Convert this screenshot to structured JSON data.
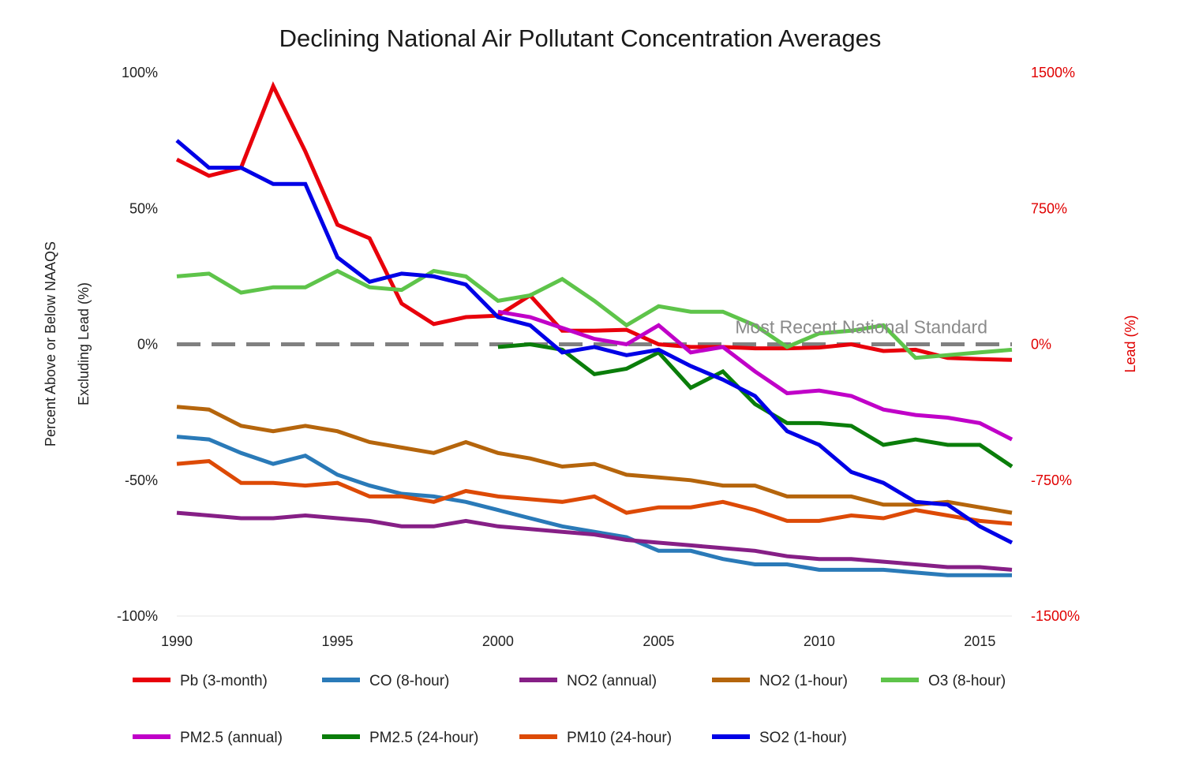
{
  "chart_data": {
    "type": "line",
    "title": "Declining National Air Pollutant Concentration Averages",
    "ylabel_line1": "Percent Above or Below NAAQS",
    "ylabel_line2": "Excluding Lead (%)",
    "y2label": "Lead (%)",
    "x_ticks": [
      1990,
      1995,
      2000,
      2005,
      2010,
      2015
    ],
    "xlim": [
      1990,
      2016
    ],
    "ylim": [
      -100,
      100
    ],
    "y_ticks": [
      100,
      50,
      0,
      -50,
      -100
    ],
    "y_tick_labels": [
      "100%",
      "50%",
      "0%",
      "-50%",
      "-100%"
    ],
    "y2lim": [
      -1500,
      1500
    ],
    "y2_ticks": [
      1500,
      750,
      0,
      -750,
      -1500
    ],
    "y2_tick_labels": [
      "1500%",
      "750%",
      "0%",
      "-750%",
      "-1500%"
    ],
    "reference_line": {
      "y": 0,
      "label": "Most Recent National Standard",
      "color": "#808080"
    },
    "grid": false,
    "legend_position": "bottom",
    "series": [
      {
        "name": "Pb (3-month)",
        "color": "#e8000b",
        "axis": "right",
        "x": [
          1990,
          1991,
          1992,
          1993,
          1994,
          1995,
          1996,
          1997,
          1998,
          1999,
          2000,
          2001,
          2002,
          2003,
          2004,
          2005,
          2006,
          2007,
          2008,
          2009,
          2010,
          2011,
          2012,
          2013,
          2014,
          2015,
          2016
        ],
        "y": [
          1020,
          930,
          975,
          1425,
          1065,
          660,
          585,
          225,
          112,
          150,
          158,
          270,
          75,
          75,
          80,
          0,
          -15,
          -15,
          -22,
          -22,
          -18,
          0,
          -37,
          -30,
          -75,
          -82,
          -86
        ]
      },
      {
        "name": "CO (8-hour)",
        "color": "#2a7ab8",
        "axis": "left",
        "x": [
          1990,
          1991,
          1992,
          1993,
          1994,
          1995,
          1996,
          1997,
          1998,
          1999,
          2000,
          2001,
          2002,
          2003,
          2004,
          2005,
          2006,
          2007,
          2008,
          2009,
          2010,
          2011,
          2012,
          2013,
          2014,
          2015,
          2016
        ],
        "y": [
          -34,
          -35,
          -40,
          -44,
          -41,
          -48,
          -52,
          -55,
          -56,
          -58,
          -61,
          -64,
          -67,
          -69,
          -71,
          -76,
          -76,
          -79,
          -81,
          -81,
          -83,
          -83,
          -83,
          -84,
          -85,
          -85,
          -85
        ]
      },
      {
        "name": "NO2 (annual)",
        "color": "#861f86",
        "axis": "left",
        "x": [
          1990,
          1991,
          1992,
          1993,
          1994,
          1995,
          1996,
          1997,
          1998,
          1999,
          2000,
          2001,
          2002,
          2003,
          2004,
          2005,
          2006,
          2007,
          2008,
          2009,
          2010,
          2011,
          2012,
          2013,
          2014,
          2015,
          2016
        ],
        "y": [
          -62,
          -63,
          -64,
          -64,
          -63,
          -64,
          -65,
          -67,
          -67,
          -65,
          -67,
          -68,
          -69,
          -70,
          -72,
          -73,
          -74,
          -75,
          -76,
          -78,
          -79,
          -79,
          -80,
          -81,
          -82,
          -82,
          -83
        ]
      },
      {
        "name": "NO2 (1-hour)",
        "color": "#b5650c",
        "axis": "left",
        "x": [
          1990,
          1991,
          1992,
          1993,
          1994,
          1995,
          1996,
          1997,
          1998,
          1999,
          2000,
          2001,
          2002,
          2003,
          2004,
          2005,
          2006,
          2007,
          2008,
          2009,
          2010,
          2011,
          2012,
          2013,
          2014,
          2015,
          2016
        ],
        "y": [
          -23,
          -24,
          -30,
          -32,
          -30,
          -32,
          -36,
          -38,
          -40,
          -36,
          -40,
          -42,
          -45,
          -44,
          -48,
          -49,
          -50,
          -52,
          -52,
          -56,
          -56,
          -56,
          -59,
          -59,
          -58,
          -60,
          -62
        ]
      },
      {
        "name": "O3 (8-hour)",
        "color": "#5ec44a",
        "axis": "left",
        "x": [
          1990,
          1991,
          1992,
          1993,
          1994,
          1995,
          1996,
          1997,
          1998,
          1999,
          2000,
          2001,
          2002,
          2003,
          2004,
          2005,
          2006,
          2007,
          2008,
          2009,
          2010,
          2011,
          2012,
          2013,
          2014,
          2015,
          2016
        ],
        "y": [
          25,
          26,
          19,
          21,
          21,
          27,
          21,
          20,
          27,
          25,
          16,
          18,
          24,
          16,
          7,
          14,
          12,
          12,
          7,
          -1,
          4,
          5,
          7,
          -5,
          -4,
          -3,
          -2
        ]
      },
      {
        "name": "PM2.5 (annual)",
        "color": "#c000c8",
        "axis": "left",
        "x": [
          2000,
          2001,
          2002,
          2003,
          2004,
          2005,
          2006,
          2007,
          2008,
          2009,
          2010,
          2011,
          2012,
          2013,
          2014,
          2015,
          2016
        ],
        "y": [
          12,
          10,
          6,
          2,
          0,
          7,
          -3,
          -1,
          -10,
          -18,
          -17,
          -19,
          -24,
          -26,
          -27,
          -29,
          -35
        ]
      },
      {
        "name": "PM2.5 (24-hour)",
        "color": "#0a7d0a",
        "axis": "left",
        "x": [
          2000,
          2001,
          2002,
          2003,
          2004,
          2005,
          2006,
          2007,
          2008,
          2009,
          2010,
          2011,
          2012,
          2013,
          2014,
          2015,
          2016
        ],
        "y": [
          -1,
          0,
          -2,
          -11,
          -9,
          -3,
          -16,
          -10,
          -22,
          -29,
          -29,
          -30,
          -37,
          -35,
          -37,
          -37,
          -45
        ]
      },
      {
        "name": "PM10 (24-hour)",
        "color": "#dd4a06",
        "axis": "left",
        "x": [
          1990,
          1991,
          1992,
          1993,
          1994,
          1995,
          1996,
          1997,
          1998,
          1999,
          2000,
          2001,
          2002,
          2003,
          2004,
          2005,
          2006,
          2007,
          2008,
          2009,
          2010,
          2011,
          2012,
          2013,
          2014,
          2015,
          2016
        ],
        "y": [
          -44,
          -43,
          -51,
          -51,
          -52,
          -51,
          -56,
          -56,
          -58,
          -54,
          -56,
          -57,
          -58,
          -56,
          -62,
          -60,
          -60,
          -58,
          -61,
          -65,
          -65,
          -63,
          -64,
          -61,
          -63,
          -65,
          -66
        ]
      },
      {
        "name": "SO2 (1-hour)",
        "color": "#0000e6",
        "axis": "left",
        "x": [
          1990,
          1991,
          1992,
          1993,
          1994,
          1995,
          1996,
          1997,
          1998,
          1999,
          2000,
          2001,
          2002,
          2003,
          2004,
          2005,
          2006,
          2007,
          2008,
          2009,
          2010,
          2011,
          2012,
          2013,
          2014,
          2015,
          2016
        ],
        "y": [
          75,
          65,
          65,
          59,
          59,
          32,
          23,
          26,
          25,
          22,
          10,
          7,
          -3,
          -1,
          -4,
          -2,
          -8,
          -13,
          -19,
          -32,
          -37,
          -47,
          -51,
          -58,
          -59,
          -67,
          -73
        ]
      }
    ]
  }
}
